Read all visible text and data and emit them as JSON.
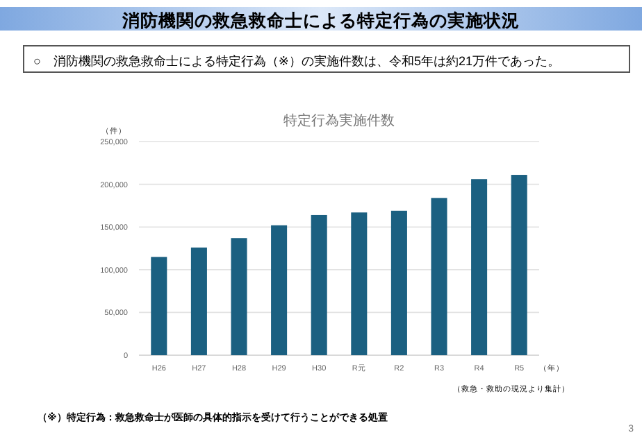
{
  "chart_data": {
    "type": "bar",
    "title": "特定行為実施件数",
    "categories": [
      "H26",
      "H27",
      "H28",
      "H29",
      "H30",
      "R元",
      "R2",
      "R3",
      "R4",
      "R5"
    ],
    "values": [
      115000,
      126000,
      137000,
      152000,
      164000,
      167000,
      169000,
      184000,
      206000,
      211000
    ],
    "color": "#1b6081",
    "ylabel": "（件）",
    "xlabel": "（年）",
    "ylim": [
      0,
      250000
    ],
    "yticks": [
      {
        "value": 0,
        "label": "0"
      },
      {
        "value": 50000,
        "label": "50,000"
      },
      {
        "value": 100000,
        "label": "100,000"
      },
      {
        "value": 150000,
        "label": "150,000"
      },
      {
        "value": 200000,
        "label": "200,000"
      },
      {
        "value": 250000,
        "label": "250,000"
      }
    ],
    "grid": "y",
    "annotations": [
      "消防機関の救急救命士による特定行為の実施状況",
      "○　消防機関の救急救命士による特定行為（※）の実施件数は、令和5年は約21万件であった。",
      "（救急・救助の現況より集計）",
      "（※）特定行為：救急救命士が医師の具体的指示を受けて行うことができる処置",
      "3"
    ]
  }
}
